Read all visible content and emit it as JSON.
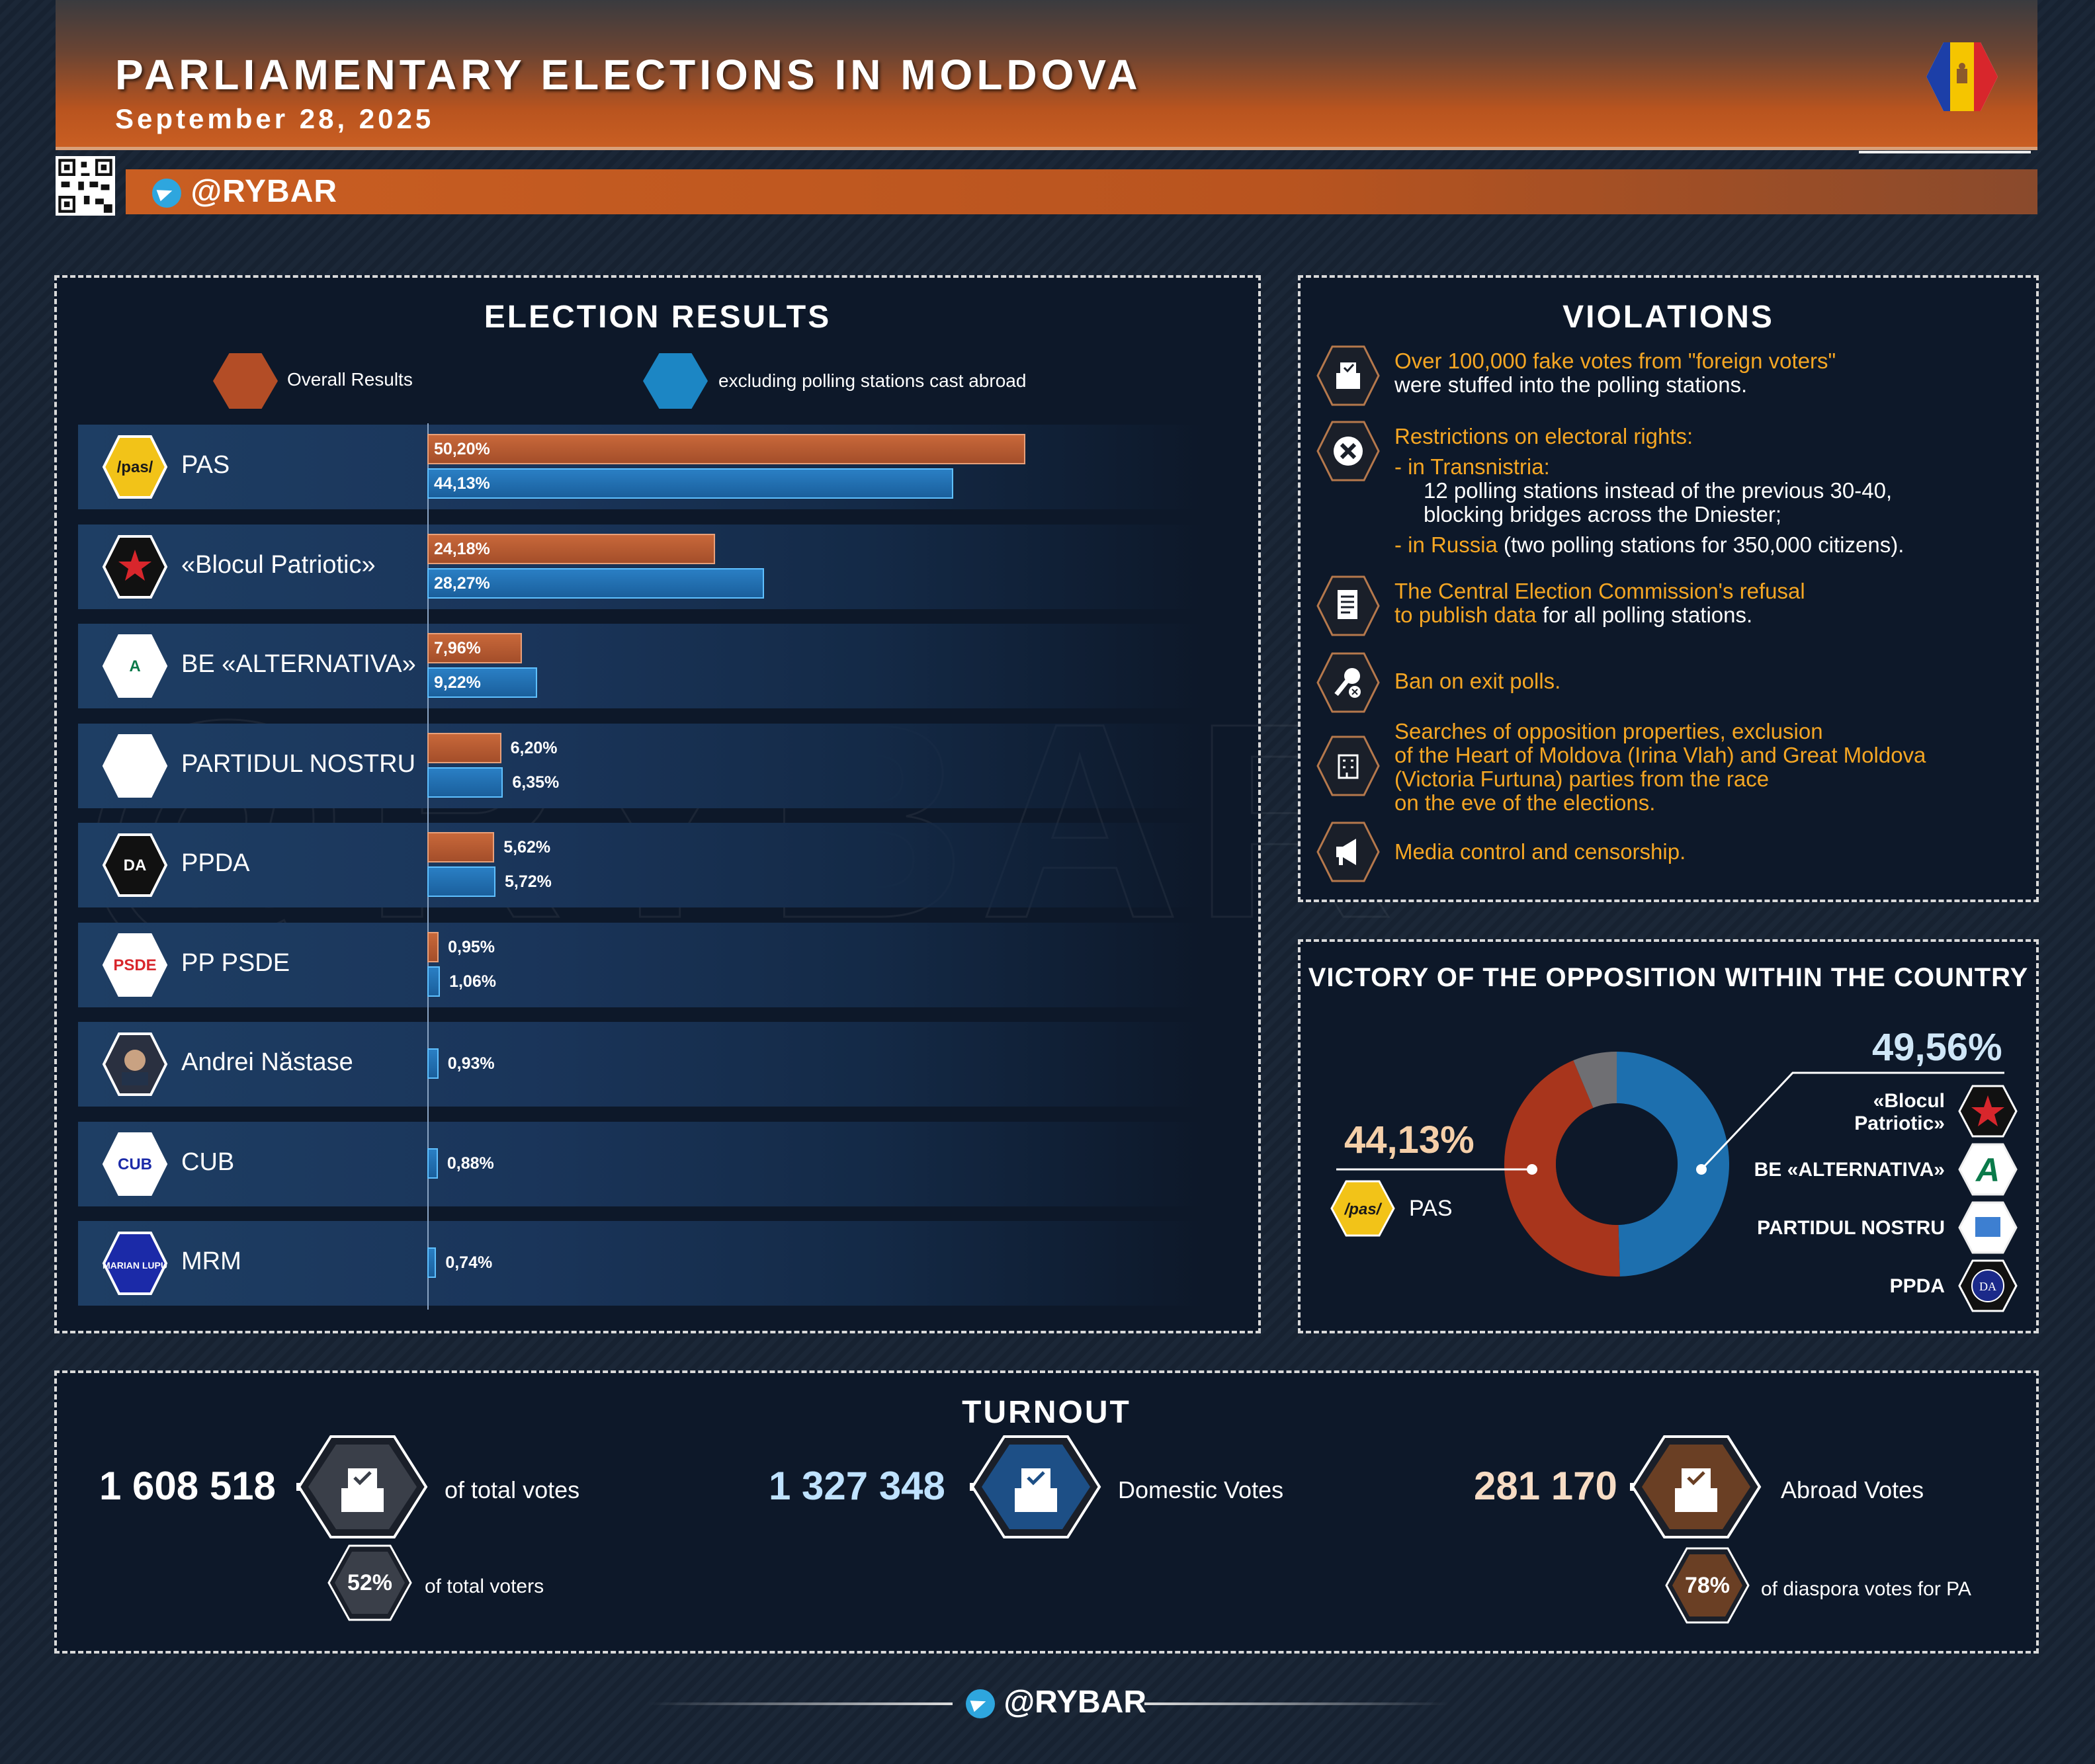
{
  "header": {
    "title": "PARLIAMENTARY ELECTIONS IN MOLDOVA",
    "date": "September 28, 2025",
    "handle": "@RYBAR"
  },
  "colors": {
    "overall": "#b85a30",
    "domestic": "#1f72b5",
    "accent_orange": "#f5a623",
    "panel_bg": "#0d1829",
    "pas_yellow": "#f2c318"
  },
  "results": {
    "title": "ELECTION RESULTS",
    "legend_overall": "Overall Results",
    "legend_domestic": "excluding polling stations cast abroad"
  },
  "chart_data": {
    "type": "bar",
    "title": "ELECTION RESULTS",
    "categories": [
      "PAS",
      "«Blocul Patriotic»",
      "BE «ALTERNATIVA»",
      "PARTIDUL NOSTRU",
      "PPDA",
      "PP PSDE",
      "Andrei Năstase",
      "CUB",
      "MRM"
    ],
    "series": [
      {
        "name": "Overall Results",
        "values": [
          50.2,
          24.18,
          7.96,
          6.2,
          5.62,
          0.95,
          null,
          null,
          null
        ],
        "labels": [
          "50,20%",
          "24,18%",
          "7,96%",
          "6,20%",
          "5,62%",
          "0,95%",
          "",
          "",
          ""
        ]
      },
      {
        "name": "excluding polling stations cast abroad",
        "values": [
          44.13,
          28.27,
          9.22,
          6.35,
          5.72,
          1.06,
          0.93,
          0.88,
          0.74
        ],
        "labels": [
          "44,13%",
          "28,27%",
          "9,22%",
          "6,35%",
          "5,72%",
          "1,06%",
          "0,93%",
          "0,88%",
          "0,74%"
        ]
      }
    ],
    "xlim": [
      0,
      56
    ],
    "logos": [
      "/pas/",
      "",
      "A",
      "",
      "DA",
      "PSDE",
      "",
      "CUB",
      "MARIAN LUPU"
    ]
  },
  "violations": {
    "title": "VIOLATIONS",
    "items": [
      {
        "icon": "ballot-box-icon",
        "orange": "Over 100,000 fake votes from \"foreign voters\"",
        "white": "were stuffed into the polling stations."
      },
      {
        "icon": "cross-icon",
        "orange": "Restrictions on electoral rights:",
        "sub1": "- in Transnistria:",
        "sub1_text": "12 polling stations instead of the previous 30-40,",
        "sub1_text2": "blocking bridges across the Dniester;",
        "sub2": "- in Russia",
        "sub2_text": " (two polling stations for 350,000 citizens)."
      },
      {
        "icon": "document-icon",
        "orange": "The Central Election Commission's refusal",
        "orange2": "to publish data",
        "white": " for all polling stations."
      },
      {
        "icon": "microphone-ban-icon",
        "orange": "Ban on exit polls."
      },
      {
        "icon": "search-building-icon",
        "lines": [
          "Searches of opposition properties, exclusion",
          "of the Heart of Moldova (Irina Vlah) and Great Moldova",
          "(Victoria Furtuna) parties from the race",
          "on the eve of the elections."
        ]
      },
      {
        "icon": "megaphone-icon",
        "orange": "Media control and censorship."
      }
    ]
  },
  "victory": {
    "title": "VICTORY OF THE OPPOSITION WITHIN THE COUNTRY",
    "left_pct": "44,13%",
    "left_label": "PAS",
    "right_pct": "49,56%",
    "right_labels": [
      "«Blocul",
      "Patriotic»",
      "BE «ALTERNATIVA»",
      "PARTIDUL NOSTRU",
      "PPDA"
    ],
    "donut": {
      "pas": 44.13,
      "opposition": 49.56,
      "other": 6.31
    }
  },
  "turnout": {
    "title": "TURNOUT",
    "total_num": "1 608 518",
    "total_label": "of total votes",
    "total_pct": "52%",
    "total_pct_label": "of total voters",
    "domestic_num": "1 327 348",
    "domestic_label": "Domestic Votes",
    "abroad_num": "281 170",
    "abroad_label": "Abroad Votes",
    "abroad_pct": "78%",
    "abroad_pct_label": "of diaspora votes for PA"
  },
  "footer": {
    "handle": "@RYBAR"
  }
}
